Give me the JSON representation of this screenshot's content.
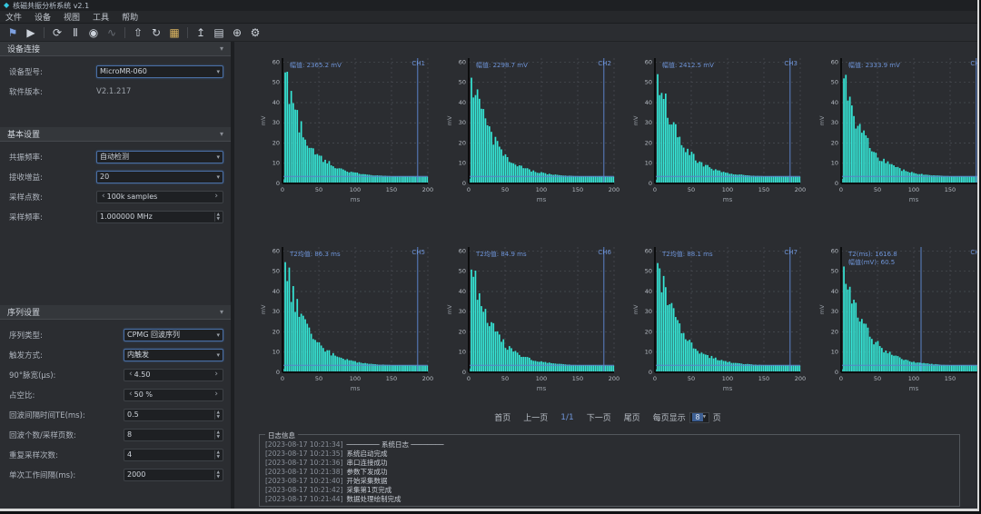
{
  "icons": {
    "app": "◆",
    "collapse": "▾",
    "dropdown": "▾",
    "spin_up": "▲",
    "spin_down": "▼",
    "step_left": "‹",
    "step_right": "›"
  },
  "window": {
    "title": "核磁共振分析系统 v2.1"
  },
  "menu": {
    "items": [
      "文件",
      "设备",
      "视图",
      "工具",
      "帮助"
    ]
  },
  "toolbar": {
    "icons": [
      "⚑",
      "▶",
      "⟳",
      "Ⅱ",
      "◉",
      "∿",
      "⇧",
      "↻",
      "▦",
      "↥",
      "▤",
      "⊕",
      "⚙"
    ]
  },
  "sidebar": {
    "device": {
      "title": "设备连接",
      "rows": [
        {
          "label": "设备型号:",
          "value": "MicroMR-060",
          "type": "combo"
        },
        {
          "label": "软件版本:",
          "value": "V2.1.217",
          "type": "text"
        }
      ]
    },
    "sampling": {
      "title": "基本设置",
      "rows": [
        {
          "label": "共振频率:",
          "value": "自动检测",
          "type": "combo"
        },
        {
          "label": "接收增益:",
          "value": "20",
          "type": "combo"
        },
        {
          "label": "采样点数:",
          "value": "100k samples",
          "type": "stepper"
        },
        {
          "label": "采样频率:",
          "value": "1.000000 MHz",
          "type": "stepper"
        }
      ]
    },
    "work": {
      "title": "序列设置",
      "rows": [
        {
          "label": "序列类型:",
          "value": "CPMG 回波序列",
          "type": "combo"
        },
        {
          "label": "触发方式:",
          "value": "内触发",
          "type": "combo"
        },
        {
          "label": "90°脉宽(μs):",
          "value": "4.50",
          "type": "stepper"
        },
        {
          "label": "占空比:",
          "value": "50 %",
          "type": "stepper"
        },
        {
          "label": "回波间隔时间TE(ms):",
          "value": "0.5",
          "type": "spin"
        },
        {
          "label": "回波个数/采样页数:",
          "value": "8",
          "type": "spin"
        },
        {
          "label": "重复采样次数:",
          "value": "4",
          "type": "spin"
        },
        {
          "label": "单次工作间隔(ms):",
          "value": "2000",
          "type": "spin"
        }
      ]
    }
  },
  "charts": {
    "common": {
      "x_ticks": [
        0,
        50,
        100,
        150,
        200
      ],
      "y_ticks": [
        0,
        10,
        20,
        30,
        40,
        50,
        60
      ],
      "x_label": "ms",
      "y_label": "mV",
      "x_max": 200,
      "y_max": 62,
      "curve_color": "#35e6d6",
      "cursor_color": "#5b82c8",
      "grid_color": "#4b4f55",
      "axis_color": "#0c0d0e",
      "tick_color": "#b6bcc4",
      "threshold_y": 3.5,
      "peak": 55,
      "tau": 30,
      "baseline": 3.2,
      "type": "area"
    },
    "items": [
      {
        "legend": "CH1",
        "annotations": [
          "幅值: 2365.2 mV"
        ],
        "cursor_x": 0.93,
        "seed": 1
      },
      {
        "legend": "CH2",
        "annotations": [
          "幅值: 2298.7 mV"
        ],
        "cursor_x": 0.93,
        "seed": 2
      },
      {
        "legend": "CH3",
        "annotations": [
          "幅值: 2412.5 mV"
        ],
        "cursor_x": 0.93,
        "seed": 3
      },
      {
        "legend": "CH4",
        "annotations": [
          "幅值: 2333.9 mV"
        ],
        "cursor_x": 0.93,
        "seed": 4
      },
      {
        "legend": "CH5",
        "annotations": [
          "T2均值: 86.3 ms"
        ],
        "cursor_x": 0.93,
        "seed": 5
      },
      {
        "legend": "CH6",
        "annotations": [
          "T2均值: 84.9 ms"
        ],
        "cursor_x": 0.93,
        "seed": 6
      },
      {
        "legend": "CH7",
        "annotations": [
          "T2均值: 88.1 ms"
        ],
        "cursor_x": 0.93,
        "seed": 7
      },
      {
        "legend": "CH8",
        "annotations": [
          "T2(ms): 1616.8",
          "幅值(mV): 60.5"
        ],
        "cursor_x": 0.55,
        "seed": 8
      }
    ]
  },
  "pagination": {
    "first": "首页",
    "prev": "上一页",
    "current": "1/1",
    "next": "下一页",
    "last": "尾页",
    "per_page_label": "每页显示",
    "per_page_value": "8",
    "per_page_unit": "页"
  },
  "log": {
    "title": "日志信息",
    "lines": [
      {
        "time": "[2023-08-17 10:21:34]",
        "msg": "──────── 系统日志 ────────"
      },
      {
        "time": "[2023-08-17 10:21:35]",
        "msg": "系统启动完成"
      },
      {
        "time": "[2023-08-17 10:21:36]",
        "msg": "串口连接成功"
      },
      {
        "time": "[2023-08-17 10:21:38]",
        "msg": "参数下发成功"
      },
      {
        "time": "[2023-08-17 10:21:40]",
        "msg": "开始采集数据"
      },
      {
        "time": "[2023-08-17 10:21:42]",
        "msg": "采集第1页完成"
      },
      {
        "time": "[2023-08-17 10:21:44]",
        "msg": "数据处理绘制完成"
      }
    ]
  }
}
